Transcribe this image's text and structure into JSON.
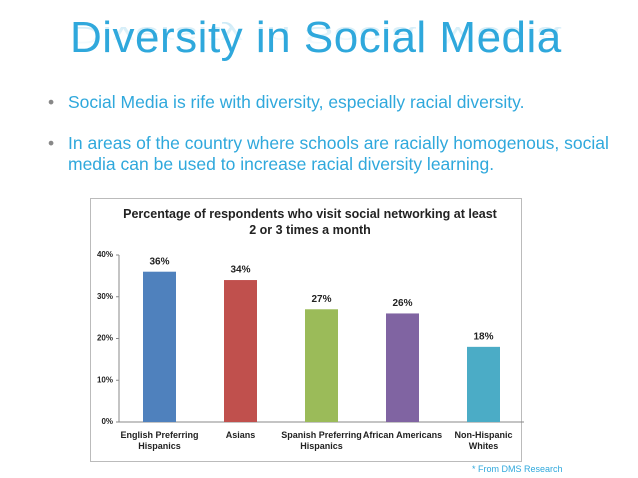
{
  "slide": {
    "title": "Diversity in Social Media",
    "bullets": [
      "Social Media is rife with diversity, especially racial diversity.",
      "In areas of the country where schools are racially homogenous, social media can be used to increase racial diversity learning."
    ],
    "footnote": "* From DMS Research"
  },
  "chart_data": {
    "type": "bar",
    "title": "Percentage of respondents who visit social networking at least 2 or 3 times a month",
    "categories": [
      "English Preferring Hispanics",
      "Asians",
      "Spanish Preferring Hispanics",
      "African Americans",
      "Non-Hispanic Whites"
    ],
    "values": [
      36,
      34,
      27,
      26,
      18
    ],
    "value_labels": [
      "36%",
      "34%",
      "27%",
      "26%",
      "18%"
    ],
    "colors": [
      "#4f81bd",
      "#c0504d",
      "#9bbb59",
      "#8064a2",
      "#4bacc6"
    ],
    "ylim": [
      0,
      40
    ],
    "yticks": [
      {
        "value": 0,
        "label": "0%"
      },
      {
        "value": 10,
        "label": "10%"
      },
      {
        "value": 20,
        "label": "20%"
      },
      {
        "value": 30,
        "label": "30%"
      },
      {
        "value": 40,
        "label": "40%"
      }
    ],
    "grid": false
  }
}
